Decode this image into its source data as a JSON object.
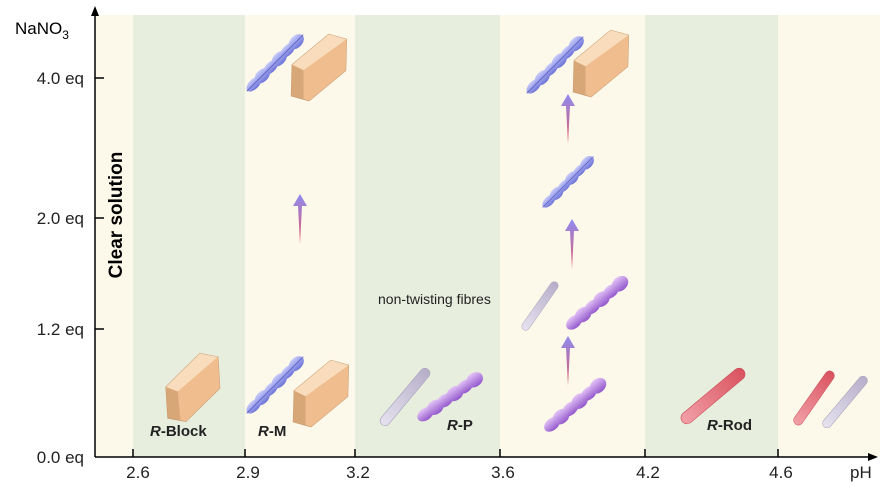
{
  "axes": {
    "y_label": {
      "main": "NaNO",
      "sub": "3"
    },
    "x_label": "pH",
    "x_ticks": [
      "2.6",
      "2.9",
      "3.2",
      "3.6",
      "4.2",
      "4.6"
    ],
    "y_ticks": [
      "4.0 eq",
      "2.0 eq",
      "1.2 eq",
      "0.0 eq"
    ]
  },
  "regions": [
    {
      "italic": "R",
      "rest": "-Block"
    },
    {
      "italic": "R",
      "rest": "-M"
    },
    {
      "italic": "R",
      "rest": "-P"
    },
    {
      "italic": "R",
      "rest": "-Rod"
    }
  ],
  "annotations": {
    "clear": "Clear solution",
    "fibres": "non-twisting fibres"
  }
}
